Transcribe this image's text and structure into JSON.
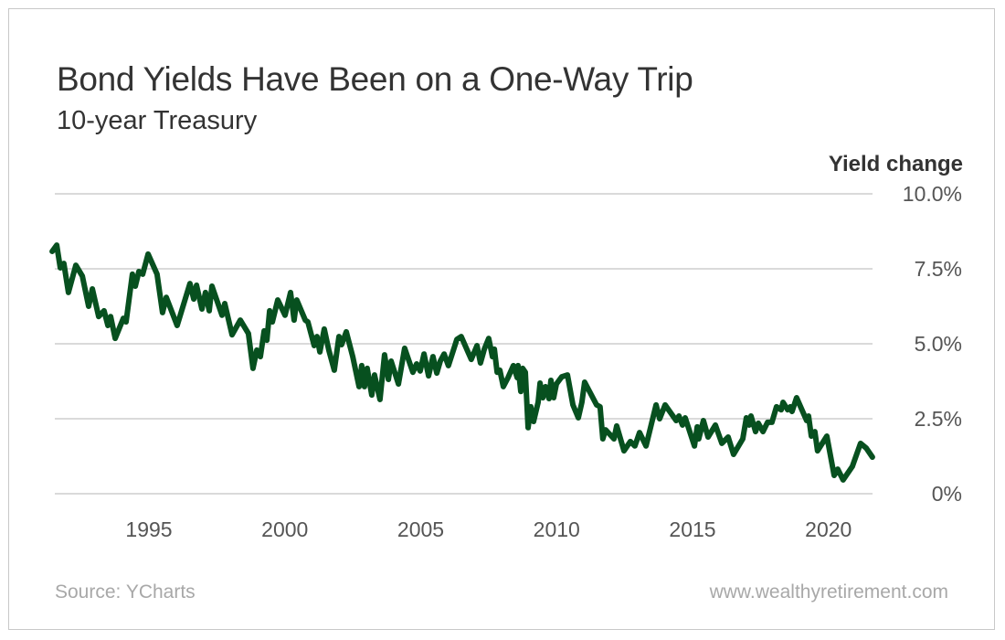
{
  "chart_data": {
    "type": "line",
    "title": "Bond Yields Have Been on a One-Way Trip",
    "subtitle": "10-year Treasury",
    "ylabel": "Yield change",
    "xlabel": "",
    "xlim": [
      1991.44,
      2021.62
    ],
    "ylim": [
      0,
      10
    ],
    "grid": true,
    "x_ticks": [
      1995,
      2000,
      2005,
      2010,
      2015,
      2020
    ],
    "x_tick_labels": [
      "1995",
      "2000",
      "2005",
      "2010",
      "2015",
      "2020"
    ],
    "y_ticks": [
      0,
      2.5,
      5,
      7.5,
      10
    ],
    "y_tick_labels": [
      "0%",
      "2.5%",
      "5.0%",
      "7.5%",
      "10.0%"
    ],
    "line_color": "#07501f",
    "series": [
      {
        "name": "10-year Treasury yield",
        "points": [
          [
            1991.44,
            8.08
          ],
          [
            1991.61,
            8.29
          ],
          [
            1991.74,
            7.53
          ],
          [
            1991.87,
            7.68
          ],
          [
            1992.04,
            6.71
          ],
          [
            1992.31,
            7.62
          ],
          [
            1992.55,
            7.26
          ],
          [
            1992.78,
            6.25
          ],
          [
            1992.92,
            6.83
          ],
          [
            1993.15,
            5.91
          ],
          [
            1993.35,
            6.1
          ],
          [
            1993.49,
            5.61
          ],
          [
            1993.59,
            5.91
          ],
          [
            1993.76,
            5.18
          ],
          [
            1994.06,
            5.85
          ],
          [
            1994.16,
            5.73
          ],
          [
            1994.39,
            7.32
          ],
          [
            1994.5,
            6.92
          ],
          [
            1994.63,
            7.41
          ],
          [
            1994.77,
            7.32
          ],
          [
            1994.97,
            7.99
          ],
          [
            1995.3,
            7.32
          ],
          [
            1995.5,
            6.04
          ],
          [
            1995.64,
            6.55
          ],
          [
            1996.04,
            5.61
          ],
          [
            1996.51,
            7.01
          ],
          [
            1996.65,
            6.49
          ],
          [
            1996.75,
            6.95
          ],
          [
            1996.95,
            6.16
          ],
          [
            1997.08,
            6.71
          ],
          [
            1997.22,
            6.1
          ],
          [
            1997.32,
            6.92
          ],
          [
            1997.69,
            5.95
          ],
          [
            1997.79,
            6.34
          ],
          [
            1998.06,
            5.3
          ],
          [
            1998.36,
            5.79
          ],
          [
            1998.66,
            5.34
          ],
          [
            1998.83,
            4.18
          ],
          [
            1998.97,
            4.79
          ],
          [
            1999.1,
            4.57
          ],
          [
            1999.24,
            5.43
          ],
          [
            1999.34,
            5.12
          ],
          [
            1999.44,
            6.1
          ],
          [
            1999.54,
            5.73
          ],
          [
            1999.74,
            6.46
          ],
          [
            2000.01,
            5.95
          ],
          [
            2000.21,
            6.71
          ],
          [
            2000.34,
            5.79
          ],
          [
            2000.44,
            6.46
          ],
          [
            2000.75,
            5.79
          ],
          [
            2000.85,
            5.73
          ],
          [
            2001.08,
            4.94
          ],
          [
            2001.18,
            5.24
          ],
          [
            2001.29,
            4.73
          ],
          [
            2001.45,
            5.49
          ],
          [
            2001.62,
            4.79
          ],
          [
            2001.82,
            4.12
          ],
          [
            2001.99,
            5.24
          ],
          [
            2002.09,
            4.97
          ],
          [
            2002.26,
            5.4
          ],
          [
            2002.5,
            4.57
          ],
          [
            2002.73,
            3.57
          ],
          [
            2002.83,
            4.27
          ],
          [
            2002.93,
            3.57
          ],
          [
            2003.03,
            4.18
          ],
          [
            2003.2,
            3.29
          ],
          [
            2003.3,
            3.96
          ],
          [
            2003.5,
            3.14
          ],
          [
            2003.67,
            4.63
          ],
          [
            2003.81,
            3.81
          ],
          [
            2003.91,
            4.42
          ],
          [
            2004.18,
            3.66
          ],
          [
            2004.41,
            4.85
          ],
          [
            2004.71,
            4.05
          ],
          [
            2004.85,
            4.33
          ],
          [
            2004.98,
            4.09
          ],
          [
            2005.12,
            4.66
          ],
          [
            2005.29,
            3.93
          ],
          [
            2005.45,
            4.57
          ],
          [
            2005.59,
            4.02
          ],
          [
            2005.72,
            4.42
          ],
          [
            2005.86,
            4.66
          ],
          [
            2006.02,
            4.27
          ],
          [
            2006.33,
            5.15
          ],
          [
            2006.49,
            5.24
          ],
          [
            2006.86,
            4.48
          ],
          [
            2007.07,
            4.94
          ],
          [
            2007.2,
            4.36
          ],
          [
            2007.34,
            4.82
          ],
          [
            2007.5,
            5.18
          ],
          [
            2007.64,
            4.57
          ],
          [
            2007.71,
            4.82
          ],
          [
            2007.81,
            4.05
          ],
          [
            2007.91,
            4.12
          ],
          [
            2008.04,
            3.57
          ],
          [
            2008.21,
            3.87
          ],
          [
            2008.41,
            4.27
          ],
          [
            2008.55,
            3.87
          ],
          [
            2008.58,
            4.27
          ],
          [
            2008.68,
            3.41
          ],
          [
            2008.75,
            4.18
          ],
          [
            2008.85,
            4.05
          ],
          [
            2008.95,
            2.2
          ],
          [
            2009.05,
            2.9
          ],
          [
            2009.15,
            2.41
          ],
          [
            2009.32,
            3.05
          ],
          [
            2009.39,
            3.69
          ],
          [
            2009.49,
            3.2
          ],
          [
            2009.59,
            3.57
          ],
          [
            2009.72,
            3.17
          ],
          [
            2009.79,
            3.78
          ],
          [
            2009.89,
            3.2
          ],
          [
            2009.99,
            3.66
          ],
          [
            2010.19,
            3.9
          ],
          [
            2010.4,
            3.96
          ],
          [
            2010.6,
            2.96
          ],
          [
            2010.8,
            2.53
          ],
          [
            2010.93,
            3.05
          ],
          [
            2011.03,
            3.72
          ],
          [
            2011.47,
            2.96
          ],
          [
            2011.6,
            2.9
          ],
          [
            2011.7,
            1.83
          ],
          [
            2011.8,
            2.13
          ],
          [
            2012.11,
            1.83
          ],
          [
            2012.21,
            2.26
          ],
          [
            2012.48,
            1.43
          ],
          [
            2012.71,
            1.74
          ],
          [
            2012.88,
            1.59
          ],
          [
            2013.05,
            2.04
          ],
          [
            2013.29,
            1.59
          ],
          [
            2013.66,
            2.96
          ],
          [
            2013.79,
            2.5
          ],
          [
            2013.99,
            2.96
          ],
          [
            2014.4,
            2.44
          ],
          [
            2014.5,
            2.59
          ],
          [
            2014.63,
            2.29
          ],
          [
            2014.73,
            2.53
          ],
          [
            2015.07,
            1.59
          ],
          [
            2015.17,
            2.23
          ],
          [
            2015.23,
            1.83
          ],
          [
            2015.4,
            2.44
          ],
          [
            2015.57,
            1.89
          ],
          [
            2015.84,
            2.29
          ],
          [
            2016.08,
            1.68
          ],
          [
            2016.31,
            1.89
          ],
          [
            2016.51,
            1.31
          ],
          [
            2016.85,
            1.83
          ],
          [
            2016.98,
            2.53
          ],
          [
            2017.08,
            2.29
          ],
          [
            2017.15,
            2.59
          ],
          [
            2017.32,
            2.07
          ],
          [
            2017.42,
            2.35
          ],
          [
            2017.59,
            2.07
          ],
          [
            2017.76,
            2.38
          ],
          [
            2017.92,
            2.38
          ],
          [
            2018.09,
            2.9
          ],
          [
            2018.26,
            2.8
          ],
          [
            2018.33,
            3.05
          ],
          [
            2018.5,
            2.8
          ],
          [
            2018.6,
            2.9
          ],
          [
            2018.66,
            2.74
          ],
          [
            2018.83,
            3.2
          ],
          [
            2019.2,
            2.44
          ],
          [
            2019.27,
            2.59
          ],
          [
            2019.37,
            1.92
          ],
          [
            2019.5,
            2.07
          ],
          [
            2019.6,
            1.43
          ],
          [
            2019.94,
            1.92
          ],
          [
            2020.21,
            0.61
          ],
          [
            2020.34,
            0.82
          ],
          [
            2020.54,
            0.46
          ],
          [
            2020.88,
            0.91
          ],
          [
            2021.18,
            1.68
          ],
          [
            2021.39,
            1.52
          ],
          [
            2021.62,
            1.22
          ]
        ]
      }
    ]
  },
  "footer": {
    "source": "Source: YCharts",
    "website": "www.wealthyretirement.com"
  }
}
